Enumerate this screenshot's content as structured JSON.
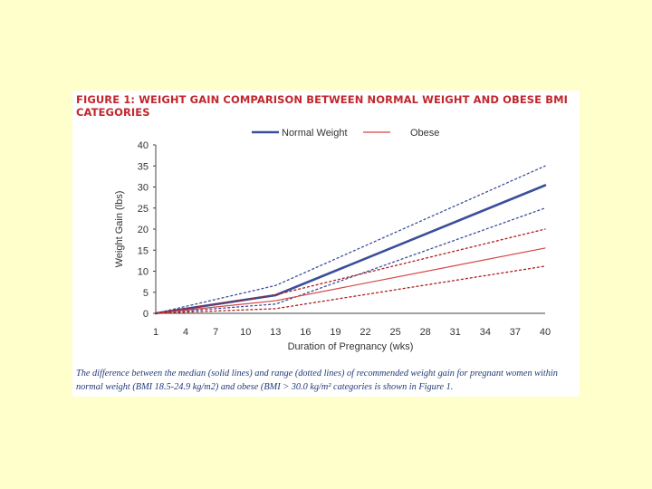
{
  "figure": {
    "title": "FIGURE 1: WEIGHT GAIN COMPARISON BETWEEN NORMAL WEIGHT AND OBESE BMI CATEGORIES",
    "caption": "The difference between the median (solid lines) and range (dotted lines) of recommended weight gain for pregnant women within normal weight (BMI 18.5-24.9 kg/m2) and obese (BMI > 30.0 kg/m² categories is shown in Figure 1."
  },
  "colors": {
    "page_background": "#ffffcc",
    "title": "#c1272d",
    "caption": "#243a7a",
    "normal_weight": "#3b4f9a",
    "obese": "#d64545",
    "obese_range": "#b01c1c"
  },
  "chart_data": {
    "type": "line",
    "xlabel": "Duration of Pregnancy (wks)",
    "ylabel": "Weight Gain (lbs)",
    "xlim": [
      1,
      40
    ],
    "ylim": [
      0,
      40
    ],
    "x_ticks": [
      1,
      4,
      7,
      10,
      13,
      16,
      19,
      22,
      25,
      28,
      31,
      34,
      37,
      40
    ],
    "y_ticks": [
      0,
      5,
      10,
      15,
      20,
      25,
      30,
      35,
      40
    ],
    "grid": false,
    "legend_position": "top",
    "series": [
      {
        "name": "Normal Weight",
        "style": "solid",
        "x": [
          1,
          13,
          40
        ],
        "values": [
          0,
          4.3,
          30.4
        ]
      },
      {
        "style": "dotted",
        "x": [
          1,
          13,
          40
        ],
        "values": [
          0,
          6.6,
          35
        ]
      },
      {
        "style": "dotted",
        "x": [
          1,
          13,
          40
        ],
        "values": [
          0,
          2.2,
          25
        ]
      },
      {
        "name": "Obese",
        "style": "solid",
        "x": [
          1,
          13,
          40
        ],
        "values": [
          0,
          3,
          15.5
        ]
      },
      {
        "style": "dotted",
        "x": [
          1,
          13,
          40
        ],
        "values": [
          0,
          4.4,
          20
        ]
      },
      {
        "style": "dotted",
        "x": [
          1,
          13,
          40
        ],
        "values": [
          0,
          1.1,
          11.2
        ]
      }
    ]
  }
}
